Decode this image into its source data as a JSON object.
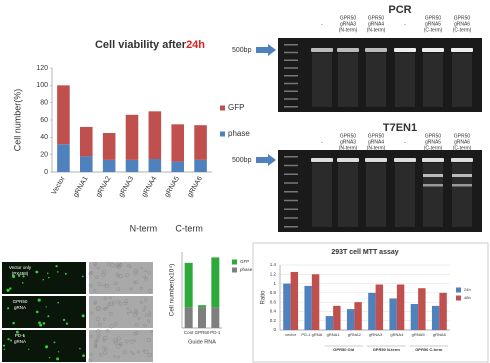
{
  "chart_data": [
    {
      "type": "bar",
      "stacked": true,
      "title": "Cell viability after",
      "title_highlight": "24h",
      "y_label": "Cell number(%)",
      "categories": [
        "Vector",
        "gRNA1",
        "gRNA2",
        "gRNA3",
        "gRNA4",
        "gRNA5",
        "gRNA6"
      ],
      "groups": [
        {
          "label": "N-term",
          "categories": [
            3,
            4
          ]
        },
        {
          "label": "C-term",
          "categories": [
            5,
            6
          ]
        }
      ],
      "series": [
        {
          "name": "phase",
          "color": "#4f81bd",
          "values": [
            32,
            18,
            14,
            14,
            15,
            12,
            14
          ]
        },
        {
          "name": "GFP",
          "color": "#c0504d",
          "values": [
            68,
            34,
            31,
            52,
            55,
            43,
            40
          ]
        }
      ],
      "ylim": [
        0,
        120
      ],
      "yticks": [
        0,
        20,
        40,
        60,
        80,
        100,
        120
      ],
      "grid": false,
      "legend": "right"
    },
    {
      "type": "bar",
      "stacked": true,
      "y_label": "Cell number(x10⁴)",
      "x_label": "Guide RNA",
      "categories": [
        "Cont",
        "GPR50",
        "PD-1"
      ],
      "series": [
        {
          "name": "phase",
          "color": "#7f7f7f",
          "values": [
            38,
            38,
            38
          ]
        },
        {
          "name": "GFP",
          "color": "#2eaa3a",
          "values": [
            82,
            4,
            92
          ]
        }
      ],
      "ylim": [
        0,
        140
      ],
      "grid": false,
      "legend": "right"
    },
    {
      "type": "bar",
      "stacked": false,
      "title": "293T cell MTT assay",
      "y_label": "Ratio",
      "categories": [
        "vector",
        "PD-1 gRNA",
        "gRNA1",
        "gRNA2",
        "gRNA3",
        "gRNA4",
        "gRNA5",
        "gRNA6"
      ],
      "groups": [
        {
          "label": "GPR50 Old",
          "categories": [
            2,
            3
          ]
        },
        {
          "label": "GPR50 N-term",
          "categories": [
            4,
            5
          ]
        },
        {
          "label": "GPR50 C-term",
          "categories": [
            6,
            7
          ]
        }
      ],
      "series": [
        {
          "name": "24h",
          "color": "#4f81bd",
          "values": [
            1.0,
            0.95,
            0.3,
            0.45,
            0.8,
            0.68,
            0.56,
            0.52
          ]
        },
        {
          "name": "48h",
          "color": "#c0504d",
          "values": [
            1.25,
            1.2,
            0.52,
            0.6,
            0.98,
            0.98,
            0.9,
            0.8
          ]
        }
      ],
      "ylim": [
        0,
        1.4
      ],
      "yticks": [
        0,
        0.2,
        0.4,
        0.6,
        0.8,
        1,
        1.2,
        1.4
      ],
      "grid": true,
      "legend": "right"
    }
  ],
  "gels": [
    {
      "title": "PCR",
      "marker": "500bp",
      "lanes": [
        [
          "-"
        ],
        [
          "GPR50",
          "gRNA3",
          "(N-term)"
        ],
        [
          "GPR50",
          "gRNA4",
          "(N-term)"
        ],
        [
          "-"
        ],
        [
          "GPR50",
          "gRNA5",
          "(C-term)"
        ],
        [
          "GPR50",
          "gRNA6",
          "(C-term)"
        ]
      ]
    },
    {
      "title": "T7EN1",
      "marker": "500bp",
      "lanes": [
        [
          "-"
        ],
        [
          "GPR50",
          "gRNA3",
          "(N-term)"
        ],
        [
          "GPR50",
          "gRNA4",
          "(N-term)"
        ],
        [
          "-"
        ],
        [
          "GPR50",
          "gRNA5",
          "(C-term)"
        ],
        [
          "GPR50",
          "gRNA6",
          "(C-term)"
        ]
      ]
    }
  ],
  "micrographs": [
    [
      "Vector only",
      "(PX458)"
    ],
    [
      "GPR50",
      "gRNA"
    ],
    [
      "PD-1",
      "gRNA"
    ]
  ]
}
